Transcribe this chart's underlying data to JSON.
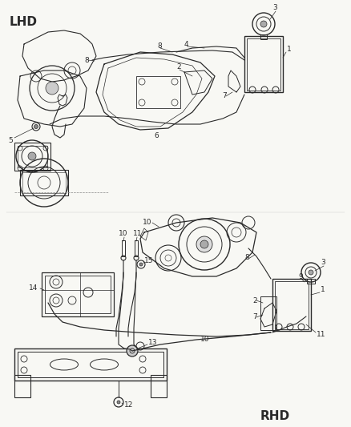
{
  "bg_color": "#f5f5f0",
  "line_color": "#2a2a2a",
  "lhd_label": "LHD",
  "rhd_label": "RHD",
  "label_fs": 6.5,
  "section_fs": 11,
  "lw": 0.7
}
